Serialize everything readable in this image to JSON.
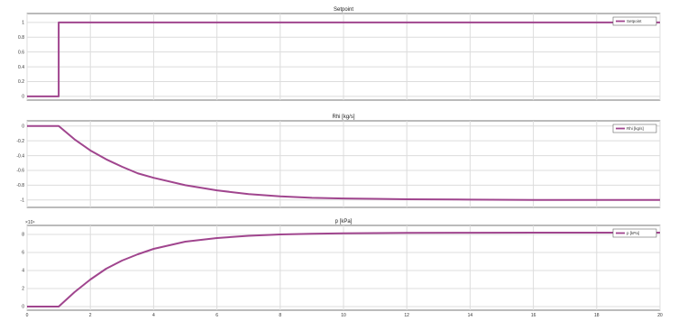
{
  "chart_data": [
    {
      "type": "line",
      "title": "Setpoint",
      "xlim": [
        0,
        20
      ],
      "ylim": [
        -0.05,
        1.12
      ],
      "xticks": [
        0,
        2,
        4,
        6,
        8,
        10,
        12,
        14,
        16,
        18,
        20
      ],
      "yticks": [
        0,
        0.2,
        0.4,
        0.6,
        0.8,
        1
      ],
      "ytick_labels": [
        "0",
        "0.2",
        "0.4",
        "0.6",
        "0.8",
        "1"
      ],
      "grid": true,
      "legend": "top-right",
      "series": [
        {
          "name": "Setpoint",
          "color": "#a0458e",
          "x": [
            0,
            1,
            1,
            20
          ],
          "y": [
            0,
            0,
            1,
            1
          ]
        }
      ]
    },
    {
      "type": "line",
      "title": "Rhi [kg/s]",
      "xlim": [
        0,
        20
      ],
      "ylim": [
        -1.1,
        0.07
      ],
      "xticks": [
        0,
        2,
        4,
        6,
        8,
        10,
        12,
        14,
        16,
        18,
        20
      ],
      "yticks": [
        0,
        -0.2,
        -0.4,
        -0.6,
        -0.8,
        -1
      ],
      "ytick_labels": [
        "0",
        "-0.2",
        "-0.4",
        "-0.6",
        "-0.8",
        "-1"
      ],
      "grid": true,
      "legend": "top-right",
      "series": [
        {
          "name": "Rhi [kg/s]",
          "color": "#a0458e",
          "x": [
            0,
            1,
            1.5,
            2,
            2.5,
            3,
            3.5,
            4,
            5,
            6,
            7,
            8,
            9,
            10,
            11,
            12,
            14,
            16,
            18,
            20
          ],
          "y": [
            0,
            0,
            -0.18,
            -0.33,
            -0.45,
            -0.55,
            -0.64,
            -0.7,
            -0.8,
            -0.87,
            -0.92,
            -0.95,
            -0.97,
            -0.98,
            -0.985,
            -0.99,
            -0.995,
            -1.0,
            -1.0,
            -1.0
          ]
        }
      ]
    },
    {
      "type": "line",
      "title": "p [kPa]",
      "xlim": [
        0,
        20
      ],
      "ylim": [
        -0.4,
        9.0
      ],
      "xticks": [
        0,
        2,
        4,
        6,
        8,
        10,
        12,
        14,
        16,
        18,
        20
      ],
      "xtick_labels": [
        "0",
        "2",
        "4",
        "6",
        "8",
        "10",
        "12",
        "14",
        "16",
        "18",
        "20"
      ],
      "yticks": [
        0,
        2,
        4,
        6,
        8
      ],
      "ytick_labels": [
        "0",
        "2",
        "4",
        "6",
        "8"
      ],
      "y_exponent": "×10⁴",
      "grid": true,
      "legend": "top-right",
      "series": [
        {
          "name": "p [kPa]",
          "color": "#a0458e",
          "x": [
            0,
            1,
            1.5,
            2,
            2.5,
            3,
            3.5,
            4,
            5,
            6,
            7,
            8,
            9,
            10,
            11,
            12,
            14,
            16,
            18,
            20
          ],
          "y": [
            0,
            0,
            1.6,
            3.0,
            4.2,
            5.1,
            5.8,
            6.4,
            7.2,
            7.6,
            7.85,
            8.0,
            8.08,
            8.12,
            8.15,
            8.17,
            8.19,
            8.2,
            8.2,
            8.2
          ]
        }
      ]
    }
  ]
}
